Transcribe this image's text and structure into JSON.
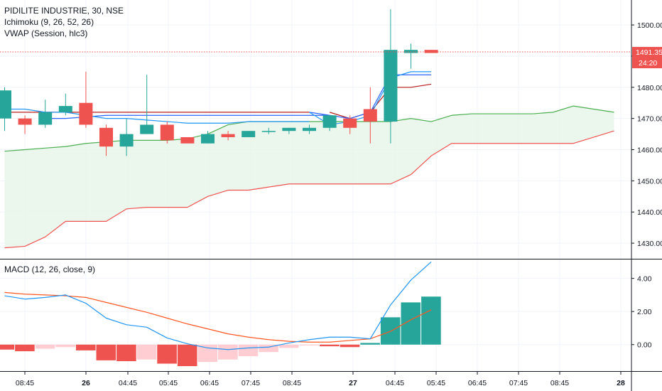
{
  "header": {
    "symbol_line": "PIDILITE INDUSTRIE, 30, NSE",
    "ichimoku_label": "Ichimoku (9, 26, 52, 26)",
    "vwap_label": "VWAP (Session, hlc3)",
    "macd_label": "MACD (12, 26, close, 9)"
  },
  "price_tags": {
    "last_price": "1491.35",
    "countdown": "24:20"
  },
  "colors": {
    "up": "#26a69a",
    "down": "#ef5350",
    "cloud_fill": "#e8f5e9",
    "leading_span_a": "#4caf50",
    "leading_span_b": "#ef5350",
    "vwap": "#2962ff",
    "conversion": "#2196f3",
    "base": "#b71c1c",
    "macd_line": "#2196f3",
    "signal_line": "#ff5722",
    "hist_neg_strong": "#ef5350",
    "hist_neg_weak": "#ffcdd2",
    "hist_pos": "#26a69a"
  },
  "chart_data": [
    {
      "type": "candlestick",
      "title": "PIDILITE INDUSTRIE, 30, NSE",
      "ylim": [
        1425,
        1508
      ],
      "y_ticks": [
        "1430.00",
        "1440.00",
        "1450.00",
        "1460.00",
        "1470.00",
        "1480.00",
        "1490.00",
        "1500.00"
      ],
      "x_ticks": [
        "08:45",
        "26",
        "04:45",
        "05:45",
        "06:45",
        "07:45",
        "08:45",
        "27",
        "04:45",
        "05:45",
        "06:45",
        "07:45",
        "08:45",
        "28"
      ],
      "x_tick_bold": [
        false,
        true,
        false,
        false,
        false,
        false,
        false,
        true,
        false,
        false,
        false,
        false,
        false,
        true
      ],
      "candles": [
        {
          "o": 1470,
          "h": 1480,
          "l": 1466,
          "c": 1479
        },
        {
          "o": 1470,
          "h": 1471,
          "l": 1465,
          "c": 1468
        },
        {
          "o": 1468,
          "h": 1476,
          "l": 1467,
          "c": 1472
        },
        {
          "o": 1472,
          "h": 1478,
          "l": 1471,
          "c": 1474
        },
        {
          "o": 1475,
          "h": 1485,
          "l": 1467,
          "c": 1468
        },
        {
          "o": 1467,
          "h": 1468,
          "l": 1458,
          "c": 1461
        },
        {
          "o": 1461,
          "h": 1470,
          "l": 1458,
          "c": 1465
        },
        {
          "o": 1465,
          "h": 1484,
          "l": 1465,
          "c": 1468
        },
        {
          "o": 1468,
          "h": 1469,
          "l": 1462,
          "c": 1463
        },
        {
          "o": 1464,
          "h": 1464,
          "l": 1462,
          "c": 1462
        },
        {
          "o": 1462,
          "h": 1466,
          "l": 1462,
          "c": 1465
        },
        {
          "o": 1465,
          "h": 1466,
          "l": 1463,
          "c": 1464
        },
        {
          "o": 1464,
          "h": 1466,
          "l": 1464,
          "c": 1466
        },
        {
          "o": 1466,
          "h": 1467,
          "l": 1465,
          "c": 1466
        },
        {
          "o": 1466,
          "h": 1467,
          "l": 1465,
          "c": 1467
        },
        {
          "o": 1466,
          "h": 1468,
          "l": 1465,
          "c": 1467
        },
        {
          "o": 1467,
          "h": 1471,
          "l": 1466,
          "c": 1471
        },
        {
          "o": 1470,
          "h": 1471,
          "l": 1465,
          "c": 1467
        },
        {
          "o": 1473,
          "h": 1480,
          "l": 1462,
          "c": 1469
        },
        {
          "o": 1469,
          "h": 1505,
          "l": 1462,
          "c": 1492
        },
        {
          "o": 1491,
          "h": 1494,
          "l": 1486,
          "c": 1492
        },
        {
          "o": 1492,
          "h": 1492,
          "l": 1491,
          "c": 1491
        }
      ],
      "leading_span_a": [
        1459.5,
        1460,
        1460.5,
        1461,
        1462,
        1462.5,
        1463,
        1463,
        1463,
        1463.5,
        1465,
        1468,
        1469,
        1469,
        1469,
        1469,
        1469,
        1469,
        1469,
        1469,
        1470,
        1469,
        1471,
        1471.5,
        1471.5,
        1471.5,
        1471.5,
        1472,
        1474,
        1473,
        1472
      ],
      "leading_span_b": [
        1428.5,
        1429,
        1432,
        1437,
        1437,
        1437,
        1441,
        1441.5,
        1441.5,
        1441.5,
        1445,
        1447,
        1447,
        1448,
        1449,
        1449,
        1449,
        1449,
        1449,
        1449,
        1452,
        1458,
        1462,
        1462,
        1462,
        1462,
        1462,
        1462,
        1462,
        1464,
        1466
      ],
      "vwap_session_1": [
        1470,
        1470,
        1470.5,
        1471,
        1471,
        1471,
        1471,
        1471,
        1471,
        1471,
        1471,
        1471,
        1471,
        1471,
        1471
      ],
      "vwap_session_2": [
        1472,
        1471,
        1470,
        1472,
        1484,
        1484,
        1484
      ],
      "conversion_line_1": [
        1473,
        1473,
        1472,
        1472,
        1471,
        1470,
        1470,
        1469.5,
        1469,
        1468.5,
        1468.5,
        1468.5,
        1469,
        1469,
        1469,
        1469
      ],
      "conversion_line_2": [
        1472,
        1468,
        1469,
        1471,
        1483,
        1485,
        1485
      ],
      "base_line_1": [
        1472,
        1472,
        1472,
        1472,
        1472,
        1472,
        1472,
        1472,
        1472,
        1472,
        1472,
        1472,
        1472,
        1472,
        1472,
        1472
      ],
      "base_line_2": [
        1472,
        1470,
        1472,
        1480,
        1480,
        1481
      ]
    },
    {
      "type": "bar",
      "title": "MACD (12, 26, close, 9)",
      "ylim": [
        -1.6,
        5.1
      ],
      "y_ticks": [
        "4.00",
        "2.00",
        "0.00"
      ],
      "histogram": [
        -0.3,
        -0.4,
        -0.25,
        -0.15,
        -0.35,
        -0.95,
        -1.0,
        -0.9,
        -1.15,
        -1.3,
        -1.05,
        -0.9,
        -0.7,
        -0.45,
        -0.2,
        -0.05,
        -0.1,
        -0.15,
        0.1,
        1.65,
        2.55,
        2.9
      ],
      "macd_line": [
        2.95,
        2.75,
        2.85,
        3.0,
        2.5,
        1.6,
        1.2,
        1.05,
        0.4,
        0.05,
        -0.2,
        -0.3,
        -0.2,
        -0.15,
        0.1,
        0.3,
        0.45,
        0.45,
        0.35,
        2.4,
        3.9,
        5.0
      ],
      "signal_line": [
        3.15,
        3.05,
        3.0,
        2.95,
        2.85,
        2.55,
        2.25,
        1.95,
        1.6,
        1.25,
        0.95,
        0.65,
        0.45,
        0.3,
        0.2,
        0.15,
        0.15,
        0.25,
        0.35,
        0.8,
        1.5,
        2.1
      ]
    }
  ]
}
